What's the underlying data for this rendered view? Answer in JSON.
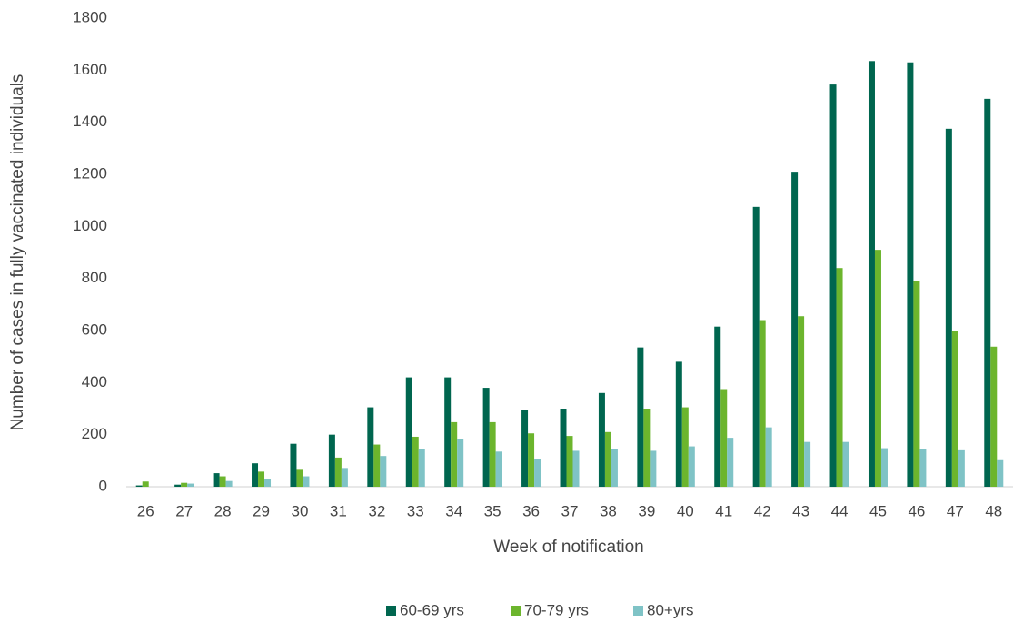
{
  "chart_data": {
    "type": "bar",
    "x_label": "Week of notification",
    "y_label": "Number of cases in fully vaccinated individuals",
    "categories": [
      "26",
      "27",
      "28",
      "29",
      "30",
      "31",
      "32",
      "33",
      "34",
      "35",
      "36",
      "37",
      "38",
      "39",
      "40",
      "41",
      "42",
      "43",
      "44",
      "45",
      "46",
      "47",
      "48"
    ],
    "series": [
      {
        "name": "60-69 yrs",
        "color": "#00664f",
        "values": [
          5,
          8,
          52,
          90,
          165,
          200,
          305,
          420,
          420,
          380,
          295,
          300,
          360,
          535,
          480,
          615,
          1075,
          1210,
          1545,
          1635,
          1630,
          1375,
          1490
        ]
      },
      {
        "name": "70-79 yrs",
        "color": "#6cb52d",
        "values": [
          20,
          15,
          40,
          58,
          65,
          112,
          162,
          192,
          248,
          248,
          205,
          195,
          210,
          300,
          305,
          375,
          640,
          655,
          840,
          910,
          790,
          600,
          538
        ]
      },
      {
        "name": "80+yrs",
        "color": "#7fc3c6",
        "values": [
          0,
          12,
          22,
          30,
          40,
          72,
          118,
          145,
          182,
          135,
          108,
          138,
          145,
          138,
          155,
          188,
          228,
          172,
          172,
          148,
          145,
          140,
          102
        ]
      }
    ],
    "ylim": [
      0,
      1800
    ],
    "yticks": [
      0,
      200,
      400,
      600,
      800,
      1000,
      1200,
      1400,
      1600,
      1800
    ],
    "legend": "bottom"
  }
}
